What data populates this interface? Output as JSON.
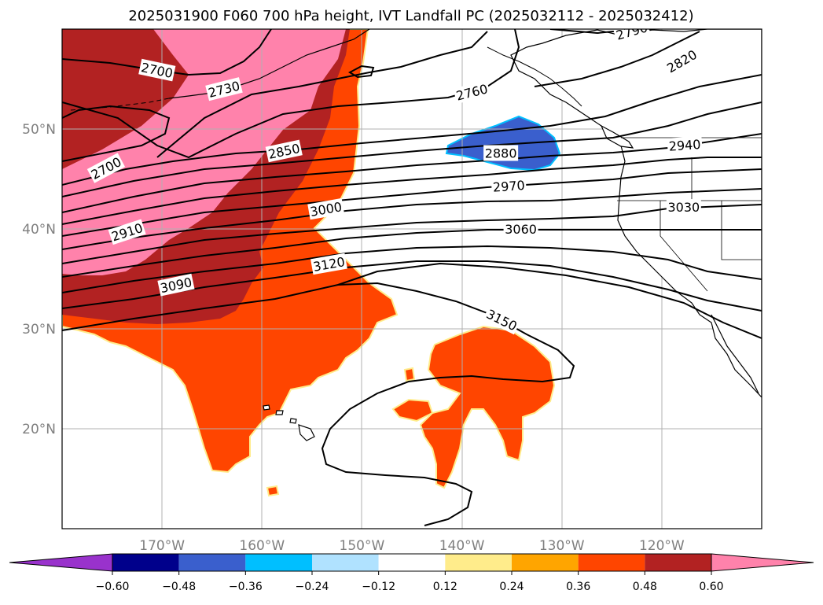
{
  "title": "2025031900 F060 700 hPa height, IVT Landfall PC (2025032112 - 2025032412)",
  "map": {
    "lon_range": [
      -180,
      -110
    ],
    "lat_range": [
      10,
      60
    ],
    "lon_ticks": [
      {
        "value": -170,
        "label": "170°W"
      },
      {
        "value": -160,
        "label": "160°W"
      },
      {
        "value": -150,
        "label": "150°W"
      },
      {
        "value": -140,
        "label": "140°W"
      },
      {
        "value": -130,
        "label": "130°W"
      },
      {
        "value": -120,
        "label": "120°W"
      }
    ],
    "lat_ticks": [
      {
        "value": 20,
        "label": "20°N"
      },
      {
        "value": 30,
        "label": "30°N"
      },
      {
        "value": 40,
        "label": "40°N"
      },
      {
        "value": 50,
        "label": "50°N"
      }
    ],
    "gridlines": true
  },
  "contour_labels": [
    {
      "text": "2700",
      "lon": -170.5,
      "lat": 55.9,
      "angle": 12
    },
    {
      "text": "2730",
      "lon": -163.8,
      "lat": 54.0,
      "angle": -14
    },
    {
      "text": "2760",
      "lon": -139.0,
      "lat": 53.7,
      "angle": -14
    },
    {
      "text": "2790",
      "lon": -123.0,
      "lat": 59.8,
      "angle": -16
    },
    {
      "text": "2820",
      "lon": -118.0,
      "lat": 56.8,
      "angle": -30
    },
    {
      "text": "2700",
      "lon": -175.6,
      "lat": 46.1,
      "angle": -28
    },
    {
      "text": "2850",
      "lon": -157.8,
      "lat": 47.8,
      "angle": -12
    },
    {
      "text": "2880",
      "lon": -136.1,
      "lat": 47.6,
      "angle": 0
    },
    {
      "text": "2940",
      "lon": -117.7,
      "lat": 48.4,
      "angle": -4
    },
    {
      "text": "2970",
      "lon": -135.3,
      "lat": 44.3,
      "angle": -4
    },
    {
      "text": "3000",
      "lon": -153.6,
      "lat": 42.0,
      "angle": -10
    },
    {
      "text": "3030",
      "lon": -117.8,
      "lat": 42.2,
      "angle": 0
    },
    {
      "text": "3060",
      "lon": -134.1,
      "lat": 40.0,
      "angle": 0
    },
    {
      "text": "2910",
      "lon": -173.5,
      "lat": 39.7,
      "angle": -18
    },
    {
      "text": "3120",
      "lon": -153.3,
      "lat": 36.5,
      "angle": -10
    },
    {
      "text": "3090",
      "lon": -168.6,
      "lat": 34.4,
      "angle": -12
    },
    {
      "text": "3150",
      "lon": -136.0,
      "lat": 30.9,
      "angle": 26
    }
  ],
  "colorbar": {
    "levels": [
      -0.6,
      -0.48,
      -0.36,
      -0.24,
      -0.12,
      0.12,
      0.24,
      0.36,
      0.48,
      0.6
    ],
    "tick_labels": [
      "−0.60",
      "−0.48",
      "−0.36",
      "−0.24",
      "−0.12",
      "0.12",
      "0.24",
      "0.36",
      "0.48",
      "0.60"
    ],
    "colors": [
      "#9932cc",
      "#00008b",
      "#3a5fcd",
      "#00bfff",
      "#b0e2ff",
      "#ffffff",
      "#ffec8b",
      "#ffa500",
      "#ff4500",
      "#b22222",
      "#ff82ab"
    ],
    "extend": "both"
  },
  "colors": {
    "land_fill": "#ffffff",
    "grid": "#b0b0b0",
    "contour": "#000000"
  }
}
